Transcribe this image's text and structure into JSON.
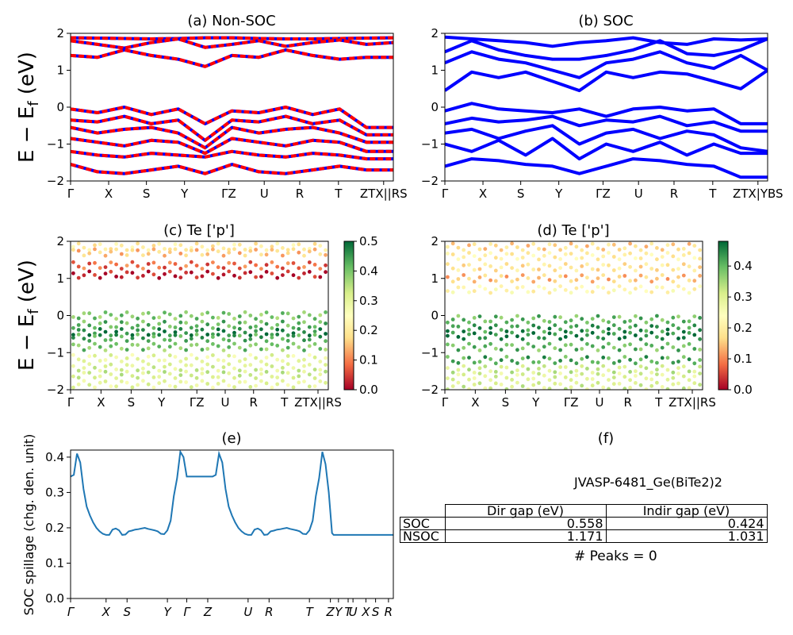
{
  "chart_data": [
    {
      "id": "a",
      "type": "line",
      "title": "(a) Non-SOC",
      "ylabel": "E − E_f (eV)",
      "ylim": [
        -2,
        2
      ],
      "yticks": [
        "2",
        "1",
        "0",
        "−1",
        "−2"
      ],
      "xticks": [
        "Γ",
        "X",
        "S",
        "Y",
        "ΓZ",
        "U",
        "R",
        "T",
        "ZTX||RS"
      ],
      "colors": {
        "up": "#ff0000",
        "down": "#0000ff"
      },
      "series": [
        {
          "values": [
            1.88,
            1.87,
            1.86,
            1.85,
            1.86,
            1.88,
            1.88,
            1.86,
            1.85,
            1.85,
            1.86,
            1.87,
            1.88
          ]
        },
        {
          "values": [
            1.8,
            1.7,
            1.6,
            1.75,
            1.85,
            1.62,
            1.7,
            1.8,
            1.65,
            1.75,
            1.82,
            1.7,
            1.75
          ]
        },
        {
          "values": [
            1.4,
            1.35,
            1.55,
            1.4,
            1.3,
            1.1,
            1.4,
            1.35,
            1.55,
            1.4,
            1.3,
            1.35,
            1.35
          ]
        },
        {
          "values": [
            -0.05,
            -0.15,
            0.0,
            -0.2,
            -0.05,
            -0.45,
            -0.1,
            -0.15,
            0.0,
            -0.2,
            -0.05,
            -0.55,
            -0.55
          ]
        },
        {
          "values": [
            -0.35,
            -0.4,
            -0.25,
            -0.45,
            -0.35,
            -0.9,
            -0.35,
            -0.4,
            -0.25,
            -0.45,
            -0.35,
            -0.75,
            -0.75
          ]
        },
        {
          "values": [
            -0.55,
            -0.7,
            -0.6,
            -0.55,
            -0.7,
            -1.1,
            -0.55,
            -0.7,
            -0.6,
            -0.55,
            -0.7,
            -0.95,
            -0.95
          ]
        },
        {
          "values": [
            -0.85,
            -0.95,
            -1.05,
            -0.9,
            -0.95,
            -1.25,
            -0.85,
            -0.95,
            -1.05,
            -0.9,
            -0.95,
            -1.2,
            -1.2
          ]
        },
        {
          "values": [
            -1.2,
            -1.3,
            -1.35,
            -1.25,
            -1.3,
            -1.35,
            -1.2,
            -1.3,
            -1.35,
            -1.25,
            -1.3,
            -1.4,
            -1.4
          ]
        },
        {
          "values": [
            -1.55,
            -1.75,
            -1.8,
            -1.7,
            -1.6,
            -1.8,
            -1.55,
            -1.75,
            -1.8,
            -1.7,
            -1.6,
            -1.7,
            -1.7
          ]
        }
      ]
    },
    {
      "id": "b",
      "type": "line",
      "title": "(b) SOC",
      "ylim": [
        -2,
        2
      ],
      "yticks": [
        "2",
        "1",
        "0",
        "−1",
        "−2"
      ],
      "xticks": [
        "Γ",
        "X",
        "S",
        "Y",
        "ΓZ",
        "U",
        "R",
        "T",
        "ZTX|YBS"
      ],
      "colors": {
        "line": "#0000ff"
      },
      "series": [
        {
          "values": [
            1.9,
            1.85,
            1.8,
            1.75,
            1.65,
            1.75,
            1.8,
            1.88,
            1.75,
            1.7,
            1.85,
            1.82,
            1.85
          ]
        },
        {
          "values": [
            1.5,
            1.8,
            1.55,
            1.4,
            1.3,
            1.3,
            1.4,
            1.55,
            1.8,
            1.45,
            1.4,
            1.55,
            1.85
          ]
        },
        {
          "values": [
            1.2,
            1.5,
            1.3,
            1.2,
            1.0,
            0.8,
            1.2,
            1.3,
            1.5,
            1.2,
            1.05,
            1.4,
            1.0
          ]
        },
        {
          "values": [
            0.45,
            0.95,
            0.8,
            0.95,
            0.7,
            0.45,
            0.95,
            0.8,
            0.95,
            0.9,
            0.7,
            0.5,
            1.0
          ]
        },
        {
          "values": [
            -0.1,
            0.1,
            -0.05,
            -0.1,
            -0.15,
            -0.05,
            -0.25,
            -0.05,
            0.0,
            -0.1,
            -0.05,
            -0.45,
            -0.45
          ]
        },
        {
          "values": [
            -0.45,
            -0.3,
            -0.4,
            -0.35,
            -0.25,
            -0.5,
            -0.35,
            -0.4,
            -0.25,
            -0.5,
            -0.4,
            -0.65,
            -0.65
          ]
        },
        {
          "values": [
            -0.7,
            -0.6,
            -0.85,
            -0.65,
            -0.5,
            -1.0,
            -0.7,
            -0.6,
            -0.85,
            -0.65,
            -0.75,
            -1.1,
            -1.2
          ]
        },
        {
          "values": [
            -1.0,
            -1.2,
            -0.9,
            -1.3,
            -0.85,
            -1.4,
            -1.0,
            -1.2,
            -0.95,
            -1.3,
            -1.0,
            -1.25,
            -1.25
          ]
        },
        {
          "values": [
            -1.6,
            -1.4,
            -1.45,
            -1.55,
            -1.6,
            -1.8,
            -1.6,
            -1.4,
            -1.45,
            -1.55,
            -1.6,
            -1.9,
            -1.9
          ]
        }
      ]
    },
    {
      "id": "c",
      "type": "scatter",
      "title": "(c)  Te ['p']",
      "ylabel": "E − E_f (eV)",
      "ylim": [
        -2,
        2
      ],
      "yticks": [
        "2",
        "1",
        "0",
        "−1",
        "−2"
      ],
      "xticks": [
        "Γ",
        "X",
        "S",
        "Y",
        "ΓZ",
        "U",
        "R",
        "T",
        "ZTX||RS"
      ],
      "colorbar": {
        "ticks": [
          "0.5",
          "0.4",
          "0.3",
          "0.2",
          "0.1",
          "0.0"
        ],
        "range": [
          0,
          0.5
        ],
        "colors": [
          "#a50026",
          "#f46d43",
          "#fee08b",
          "#ffffbf",
          "#d9ef8b",
          "#66bd63",
          "#006837"
        ]
      },
      "groups": [
        {
          "y": 1.85,
          "w": 0.2
        },
        {
          "y": 1.7,
          "w": 0.15
        },
        {
          "y": 1.35,
          "w": 0.08
        },
        {
          "y": 1.1,
          "w": 0.02
        },
        {
          "y": 0.0,
          "w": 0.4
        },
        {
          "y": -0.25,
          "w": 0.42
        },
        {
          "y": -0.45,
          "w": 0.48
        },
        {
          "y": -0.6,
          "w": 0.44
        },
        {
          "y": -0.85,
          "w": 0.4
        },
        {
          "y": -1.15,
          "w": 0.3
        },
        {
          "y": -1.4,
          "w": 0.32
        },
        {
          "y": -1.6,
          "w": 0.33
        },
        {
          "y": -1.85,
          "w": 0.3
        }
      ]
    },
    {
      "id": "d",
      "type": "scatter",
      "title": "(d) Te ['p']",
      "ylim": [
        -2,
        2
      ],
      "yticks": [
        "2",
        "1",
        "0",
        "−1",
        "−2"
      ],
      "xticks": [
        "Γ",
        "X",
        "S",
        "Y",
        "ΓZ",
        "U",
        "R",
        "T",
        "ZTX||RS"
      ],
      "colorbar": {
        "ticks": [
          "0.4",
          "0.3",
          "0.2",
          "0.1",
          "0.0"
        ],
        "range": [
          0,
          0.48
        ],
        "colors": [
          "#a50026",
          "#f46d43",
          "#fee08b",
          "#ffffbf",
          "#d9ef8b",
          "#66bd63",
          "#006837"
        ]
      },
      "groups": [
        {
          "y": 1.85,
          "w": 0.16
        },
        {
          "y": 1.6,
          "w": 0.2
        },
        {
          "y": 1.3,
          "w": 0.18
        },
        {
          "y": 1.0,
          "w": 0.14
        },
        {
          "y": 0.7,
          "w": 0.22
        },
        {
          "y": -0.1,
          "w": 0.4
        },
        {
          "y": -0.35,
          "w": 0.44
        },
        {
          "y": -0.55,
          "w": 0.46
        },
        {
          "y": -0.85,
          "w": 0.4
        },
        {
          "y": -1.2,
          "w": 0.42
        },
        {
          "y": -1.45,
          "w": 0.32
        },
        {
          "y": -1.65,
          "w": 0.3
        },
        {
          "y": -1.9,
          "w": 0.31
        }
      ]
    },
    {
      "id": "e",
      "type": "line",
      "title": "(e)",
      "ylabel": "SOC spillage (chg. den. unit)",
      "ylim": [
        0,
        0.42
      ],
      "yticks": [
        "0.4",
        "0.3",
        "0.2",
        "0.1",
        "0.0"
      ],
      "xticks": [
        "Γ",
        "X",
        "S",
        "Y",
        "Γ",
        "Z",
        "U",
        "R",
        "T",
        "Z",
        "Y",
        "T",
        "U",
        "X",
        "S",
        "R"
      ],
      "colors": {
        "line": "#1f77b4"
      },
      "x": [
        0,
        0.01,
        0.02,
        0.03,
        0.04,
        0.05,
        0.06,
        0.07,
        0.08,
        0.09,
        0.1,
        0.11,
        0.12,
        0.13,
        0.14,
        0.15,
        0.16,
        0.17,
        0.18,
        0.19,
        0.2,
        0.21,
        0.22,
        0.23,
        0.24,
        0.25,
        0.26,
        0.27,
        0.28,
        0.29,
        0.3,
        0.31,
        0.32,
        0.33,
        0.34,
        0.35,
        0.36,
        0.365,
        0.37,
        0.38,
        0.39,
        0.4,
        0.41,
        0.42,
        0.43,
        0.44,
        0.45,
        0.46,
        0.47,
        0.48,
        0.49,
        0.5,
        0.51,
        0.52,
        0.53,
        0.54,
        0.55,
        0.56,
        0.57,
        0.58,
        0.59,
        0.6,
        0.61,
        0.62,
        0.63,
        0.64,
        0.65,
        0.66,
        0.67,
        0.68,
        0.69,
        0.7,
        0.71,
        0.72,
        0.73,
        0.74,
        0.75,
        0.76,
        0.77,
        0.78,
        0.79,
        0.8,
        0.81,
        0.815,
        0.82,
        0.83,
        0.84,
        0.85,
        0.86,
        0.87,
        0.88,
        0.89,
        0.9,
        0.91,
        0.92,
        0.93,
        0.94,
        0.95,
        0.96,
        0.97,
        0.98,
        0.99,
        1.0
      ],
      "values": [
        0.345,
        0.35,
        0.41,
        0.385,
        0.31,
        0.26,
        0.235,
        0.215,
        0.2,
        0.19,
        0.183,
        0.18,
        0.18,
        0.195,
        0.198,
        0.193,
        0.18,
        0.181,
        0.19,
        0.192,
        0.195,
        0.196,
        0.198,
        0.2,
        0.197,
        0.195,
        0.193,
        0.19,
        0.183,
        0.182,
        0.193,
        0.22,
        0.29,
        0.34,
        0.415,
        0.4,
        0.345,
        0.345,
        0.345,
        0.345,
        0.345,
        0.345,
        0.345,
        0.345,
        0.345,
        0.345,
        0.35,
        0.41,
        0.385,
        0.31,
        0.26,
        0.235,
        0.215,
        0.2,
        0.19,
        0.183,
        0.18,
        0.18,
        0.195,
        0.198,
        0.193,
        0.18,
        0.181,
        0.19,
        0.192,
        0.195,
        0.196,
        0.198,
        0.2,
        0.197,
        0.195,
        0.193,
        0.19,
        0.183,
        0.182,
        0.193,
        0.22,
        0.29,
        0.34,
        0.415,
        0.38,
        0.3,
        0.185,
        0.18,
        0.18,
        0.18,
        0.18,
        0.18,
        0.18,
        0.18,
        0.18,
        0.18,
        0.18,
        0.18,
        0.18,
        0.18,
        0.18,
        0.18,
        0.18,
        0.18,
        0.18,
        0.18,
        0.18
      ]
    }
  ],
  "panel_f": {
    "title": "(f)",
    "name": "JVASP-6481_Ge(BiTe2)2",
    "table": {
      "headers": [
        "",
        "Dir gap (eV)",
        "Indir gap (eV)"
      ],
      "rows": [
        {
          "label": "SOC",
          "dir": "0.558",
          "indir": "0.424"
        },
        {
          "label": "NSOC",
          "dir": "1.171",
          "indir": "1.031"
        }
      ]
    },
    "peaks": "# Peaks = 0"
  }
}
